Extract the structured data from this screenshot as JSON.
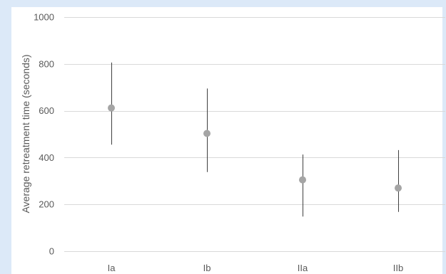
{
  "chart_data": {
    "type": "scatter",
    "title": "",
    "xlabel": "",
    "ylabel": "Average retreatment time (seconds)",
    "categories": [
      "Ia",
      "Ib",
      "IIa",
      "IIb"
    ],
    "series": [
      {
        "values": [
          612,
          503,
          305,
          270
        ],
        "error_low": [
          455,
          338,
          148,
          168
        ],
        "error_high": [
          806,
          695,
          413,
          432
        ]
      }
    ],
    "ylim": [
      0,
      1000
    ],
    "yticks": [
      0,
      200,
      400,
      600,
      800,
      1000
    ],
    "grid": true,
    "legend": "none",
    "colors": {
      "marker": "#a5a5a5",
      "error_bar": "#404040",
      "gridline": "#d9d9d9",
      "text": "#595959",
      "background": "#dce9f8",
      "plot_area": "#ffffff"
    }
  }
}
